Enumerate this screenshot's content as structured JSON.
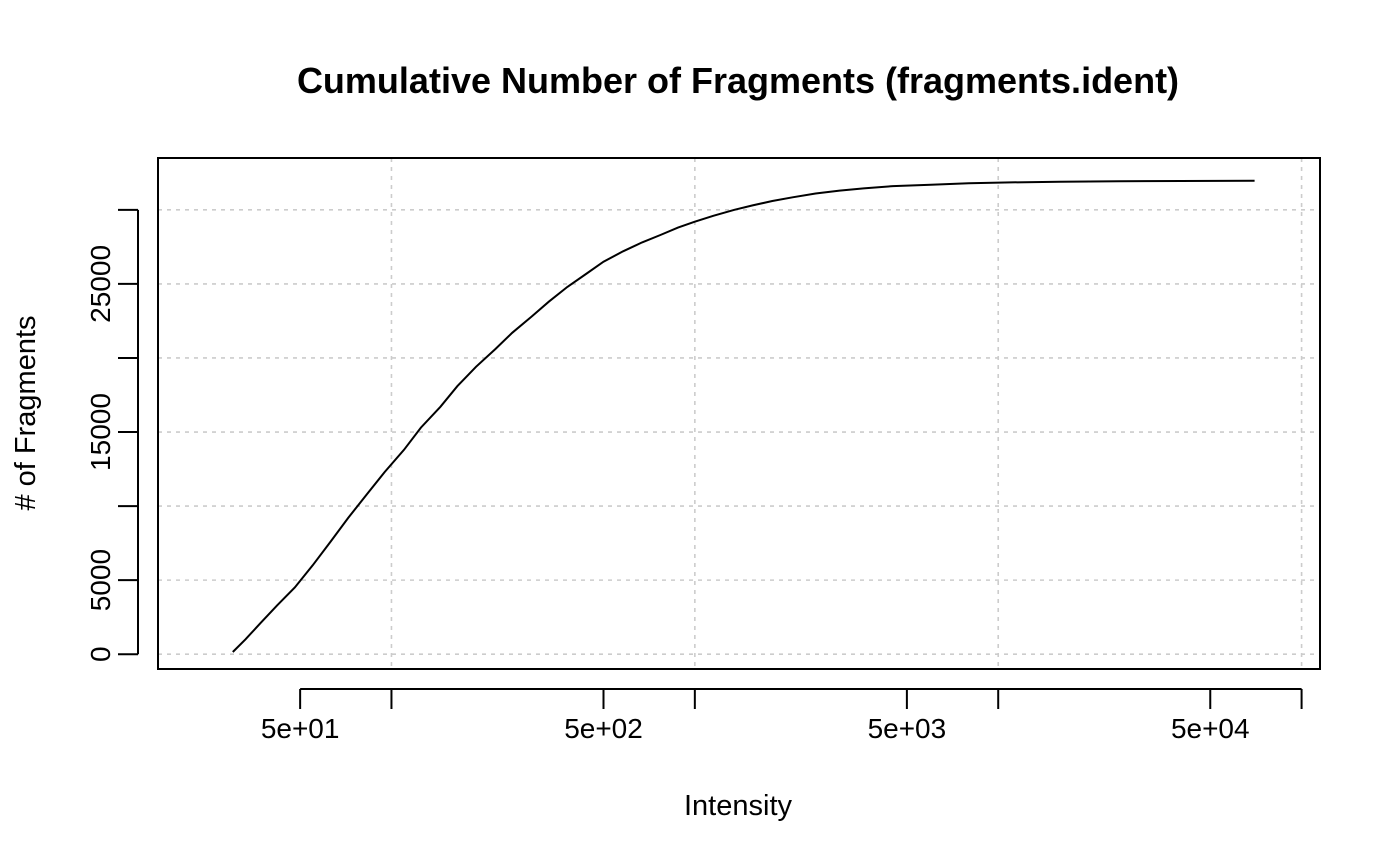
{
  "chart_data": {
    "type": "line",
    "title": "Cumulative Number of Fragments (fragments.ident)",
    "xlabel": "Intensity",
    "ylabel": "# of Fragments",
    "x_scale": "log10",
    "xlim": [
      17,
      115000
    ],
    "ylim": [
      -1000,
      33500
    ],
    "x_ticks": [
      50,
      100,
      500,
      1000,
      5000,
      10000,
      50000,
      100000
    ],
    "x_tick_labels": [
      "5e+01",
      "",
      "5e+02",
      "",
      "5e+03",
      "",
      "5e+04",
      ""
    ],
    "y_ticks": [
      0,
      5000,
      10000,
      15000,
      20000,
      25000,
      30000
    ],
    "y_tick_labels": [
      "0",
      "5000",
      "",
      "15000",
      "",
      "25000",
      ""
    ],
    "x_grid": [
      100,
      1000,
      10000,
      100000
    ],
    "y_grid": [
      0,
      5000,
      10000,
      15000,
      20000,
      25000,
      30000
    ],
    "grid": true,
    "series": [
      {
        "color": "#000000",
        "x": [
          30,
          33,
          37,
          42,
          48,
          55,
          63,
          72,
          83,
          95,
          110,
          125,
          145,
          165,
          190,
          220,
          250,
          290,
          330,
          380,
          440,
          500,
          580,
          670,
          770,
          880,
          1000,
          1150,
          1350,
          1550,
          1800,
          2100,
          2500,
          3000,
          3600,
          4500,
          6000,
          8000,
          11000,
          16000,
          25000,
          40000,
          70000
        ],
        "y": [
          150,
          1000,
          2100,
          3300,
          4500,
          6000,
          7600,
          9200,
          10800,
          12300,
          13800,
          15300,
          16700,
          18100,
          19400,
          20600,
          21700,
          22800,
          23800,
          24800,
          25700,
          26500,
          27200,
          27800,
          28300,
          28800,
          29200,
          29600,
          30000,
          30300,
          30600,
          30850,
          31100,
          31300,
          31450,
          31600,
          31700,
          31800,
          31850,
          31900,
          31930,
          31950,
          31960
        ]
      }
    ]
  }
}
